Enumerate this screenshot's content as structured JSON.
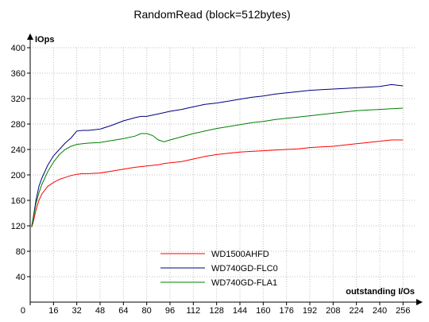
{
  "chart_data": {
    "type": "line",
    "title": "RandomRead (block=512bytes)",
    "xlabel": "outstanding I/Os",
    "ylabel": "IOps",
    "xlim": [
      0,
      264
    ],
    "ylim": [
      0,
      400
    ],
    "xticks": [
      0,
      16,
      32,
      48,
      64,
      80,
      96,
      112,
      128,
      144,
      160,
      176,
      192,
      208,
      224,
      240,
      256
    ],
    "yticks": [
      40,
      80,
      120,
      160,
      200,
      240,
      280,
      320,
      360,
      400
    ],
    "origin_label": "0",
    "grid": true,
    "legend_position": "bottom-center",
    "x": [
      1,
      2,
      4,
      6,
      8,
      12,
      16,
      20,
      24,
      28,
      32,
      36,
      40,
      48,
      56,
      64,
      72,
      76,
      80,
      84,
      88,
      92,
      96,
      104,
      112,
      120,
      128,
      136,
      144,
      152,
      160,
      168,
      176,
      184,
      192,
      200,
      208,
      216,
      224,
      232,
      240,
      248,
      256
    ],
    "series": [
      {
        "name": "WD1500AHFD",
        "color": "#ff0000",
        "values": [
          118,
          125,
          145,
          160,
          170,
          182,
          188,
          193,
          196,
          199,
          201,
          202,
          202,
          203,
          206,
          209,
          212,
          213,
          214,
          215,
          216,
          218,
          219,
          221,
          225,
          229,
          232,
          234,
          236,
          237,
          238,
          239,
          240,
          241,
          243,
          244,
          245,
          247,
          249,
          251,
          253,
          255,
          255
        ]
      },
      {
        "name": "WD740GD-FLC0",
        "color": "#000080",
        "values": [
          118,
          132,
          160,
          182,
          195,
          215,
          230,
          240,
          250,
          258,
          269,
          270,
          270,
          272,
          278,
          285,
          290,
          292,
          292,
          294,
          296,
          298,
          300,
          303,
          307,
          311,
          313,
          316,
          319,
          322,
          324,
          327,
          329,
          331,
          333,
          334,
          335,
          336,
          337,
          338,
          339,
          342,
          340
        ]
      },
      {
        "name": "WD740GD-FLA1",
        "color": "#008000",
        "values": [
          118,
          130,
          155,
          172,
          185,
          205,
          220,
          232,
          240,
          245,
          248,
          249,
          250,
          251,
          254,
          257,
          261,
          265,
          265,
          262,
          255,
          252,
          255,
          260,
          265,
          269,
          273,
          276,
          279,
          282,
          284,
          287,
          289,
          291,
          293,
          295,
          297,
          299,
          301,
          302,
          303,
          304,
          305
        ]
      }
    ]
  }
}
